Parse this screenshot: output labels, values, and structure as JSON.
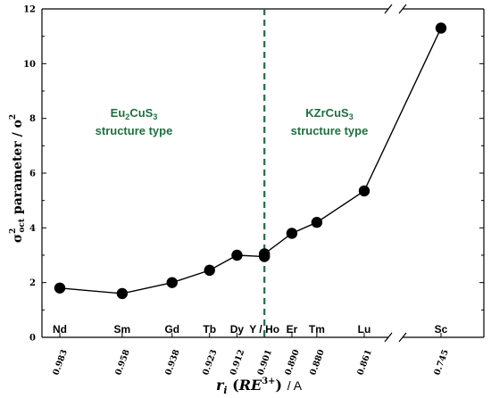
{
  "chart_data": {
    "type": "line",
    "xlabel_main": "r",
    "xlabel_sub": "i",
    "xlabel_re": "RE",
    "xlabel_charge": "3+",
    "xlabel_unit": "/ A",
    "ylabel_sigma": "σ",
    "ylabel_sup": "2",
    "ylabel_sub": "oct",
    "ylabel_word": "parameter",
    "ylabel_unit": "/ o",
    "ylabel_unit_sup": "2",
    "ylim": [
      0,
      12
    ],
    "yticks": [
      "0",
      "2",
      "4",
      "6",
      "8",
      "10",
      "12"
    ],
    "grid": false,
    "axis_break": true,
    "points": [
      {
        "element": "Nd",
        "r": "0.983",
        "x": 0.983,
        "y": 1.8
      },
      {
        "element": "Sm",
        "r": "0.958",
        "x": 0.958,
        "y": 1.6
      },
      {
        "element": "Gd",
        "r": "0.938",
        "x": 0.938,
        "y": 2.0
      },
      {
        "element": "Tb",
        "r": "0.923",
        "x": 0.923,
        "y": 2.45
      },
      {
        "element": "Dy",
        "r": "0.912",
        "x": 0.912,
        "y": 3.0
      },
      {
        "element": "Y / Ho",
        "r": "0.901",
        "x": 0.901,
        "y": 2.95
      },
      {
        "element": "Y / Ho",
        "r": "0.901",
        "x": 0.901,
        "y": 3.05
      },
      {
        "element": "Er",
        "r": "0.890",
        "x": 0.89,
        "y": 3.8
      },
      {
        "element": "Tm",
        "r": "0.880",
        "x": 0.88,
        "y": 4.2
      },
      {
        "element": "Lu",
        "r": "0.861",
        "x": 0.861,
        "y": 5.35
      },
      {
        "element": "Sc",
        "r": "0.745",
        "x": 0.745,
        "y": 11.3
      }
    ],
    "category_labels": [
      "Nd",
      "Sm",
      "Gd",
      "Tb",
      "Dy",
      "Y / Ho",
      "Er",
      "Tm",
      "Lu",
      "Sc"
    ],
    "ionic_radius_labels": [
      "0.983",
      "0.958",
      "0.938",
      "0.923",
      "0.912",
      "0.901",
      "0.890",
      "0.880",
      "0.861",
      "0.745"
    ],
    "divider_at": 0.901,
    "region_left": {
      "formula_main": "Eu",
      "sub1": "2",
      "mid": "CuS",
      "sub2": "3",
      "subtitle": "structure type"
    },
    "region_right": {
      "formula_main": "KZrCuS",
      "sub1": "",
      "mid": "",
      "sub2": "3",
      "subtitle": "structure type"
    },
    "colors": {
      "line": "#000000",
      "marker": "#000000",
      "divider": "#1f6f3f",
      "region_text": "#1f6f3f"
    }
  }
}
